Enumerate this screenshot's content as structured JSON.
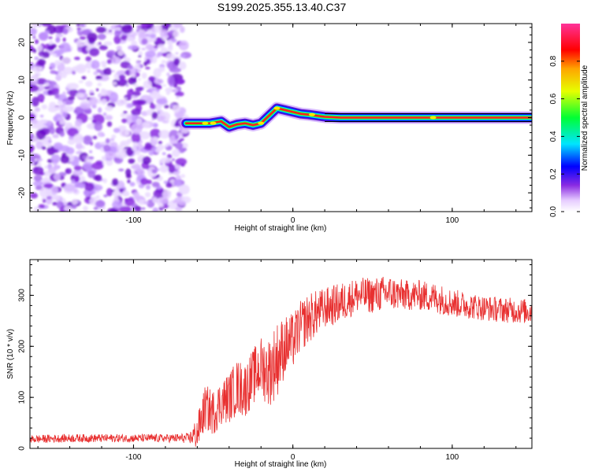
{
  "title": "S199.2025.355.13.40.C37",
  "colors": {
    "snr_line": "#e83030",
    "spectrum_line": "#e83030",
    "axis": "#000000"
  },
  "chart_data": [
    {
      "type": "heatmap",
      "name": "spectrogram",
      "xlabel": "Height of straight line (km)",
      "ylabel": "Frequency (Hz)",
      "xlim": [
        -165,
        150
      ],
      "ylim": [
        -25,
        25
      ],
      "x_ticks": [
        -100,
        0,
        100
      ],
      "x_tick_labels": [
        "-100",
        "0",
        "100"
      ],
      "y_ticks": [
        -20,
        -10,
        0,
        10,
        20
      ],
      "y_tick_labels": [
        "-20",
        "-10",
        "0",
        "10",
        "20"
      ],
      "noise_region_x": [
        -165,
        -67
      ],
      "signal_start_x": -67,
      "signal_trace": [
        {
          "x": -67,
          "y": -1.5
        },
        {
          "x": -60,
          "y": -1.5
        },
        {
          "x": -52,
          "y": -1.5
        },
        {
          "x": -45,
          "y": -1.0
        },
        {
          "x": -40,
          "y": -2.5
        },
        {
          "x": -35,
          "y": -1.8
        },
        {
          "x": -30,
          "y": -1.5
        },
        {
          "x": -25,
          "y": -2.0
        },
        {
          "x": -20,
          "y": -1.5
        },
        {
          "x": -15,
          "y": 0.5
        },
        {
          "x": -10,
          "y": 2.5
        },
        {
          "x": -5,
          "y": 2.0
        },
        {
          "x": 0,
          "y": 1.5
        },
        {
          "x": 5,
          "y": 1.0
        },
        {
          "x": 10,
          "y": 0.8
        },
        {
          "x": 15,
          "y": 0.5
        },
        {
          "x": 20,
          "y": 0.2
        },
        {
          "x": 30,
          "y": 0.0
        },
        {
          "x": 50,
          "y": 0.0
        },
        {
          "x": 80,
          "y": 0.0
        },
        {
          "x": 100,
          "y": 0.0
        },
        {
          "x": 120,
          "y": 0.0
        },
        {
          "x": 150,
          "y": 0.0
        }
      ],
      "colorbar": {
        "label": "Normalized spectral amplitude",
        "range": [
          0.0,
          1.0
        ],
        "ticks": [
          0.0,
          0.2,
          0.4,
          0.6,
          0.8
        ],
        "tick_labels": [
          "0.0",
          "0.2",
          "0.4",
          "0.6",
          "0.8"
        ]
      }
    },
    {
      "type": "line",
      "name": "snr",
      "xlabel": "Height of straight line (km)",
      "ylabel": "SNR (10 * v/v)",
      "xlim": [
        -165,
        150
      ],
      "ylim": [
        0,
        370
      ],
      "x_ticks": [
        -100,
        0,
        100
      ],
      "x_tick_labels": [
        "-100",
        "0",
        "100"
      ],
      "y_ticks": [
        0,
        100,
        200,
        300
      ],
      "y_tick_labels": [
        "0",
        "100",
        "200",
        "300"
      ],
      "series": [
        {
          "name": "SNR",
          "x": [
            -165,
            -140,
            -120,
            -100,
            -80,
            -65,
            -60,
            -55,
            -50,
            -45,
            -40,
            -35,
            -30,
            -25,
            -20,
            -15,
            -10,
            -5,
            0,
            5,
            10,
            15,
            20,
            30,
            40,
            50,
            60,
            70,
            80,
            90,
            100,
            110,
            120,
            130,
            140,
            150
          ],
          "values": [
            18,
            20,
            20,
            20,
            20,
            20,
            30,
            80,
            70,
            90,
            100,
            120,
            115,
            140,
            160,
            150,
            175,
            200,
            210,
            240,
            255,
            265,
            275,
            285,
            300,
            300,
            305,
            300,
            300,
            295,
            285,
            280,
            275,
            272,
            270,
            268
          ],
          "noise_amplitude": [
            8,
            8,
            8,
            8,
            8,
            10,
            35,
            45,
            45,
            45,
            50,
            55,
            55,
            55,
            60,
            70,
            75,
            60,
            55,
            50,
            50,
            45,
            40,
            40,
            35,
            35,
            35,
            30,
            30,
            30,
            28,
            26,
            25,
            25,
            25,
            25
          ]
        }
      ]
    }
  ]
}
